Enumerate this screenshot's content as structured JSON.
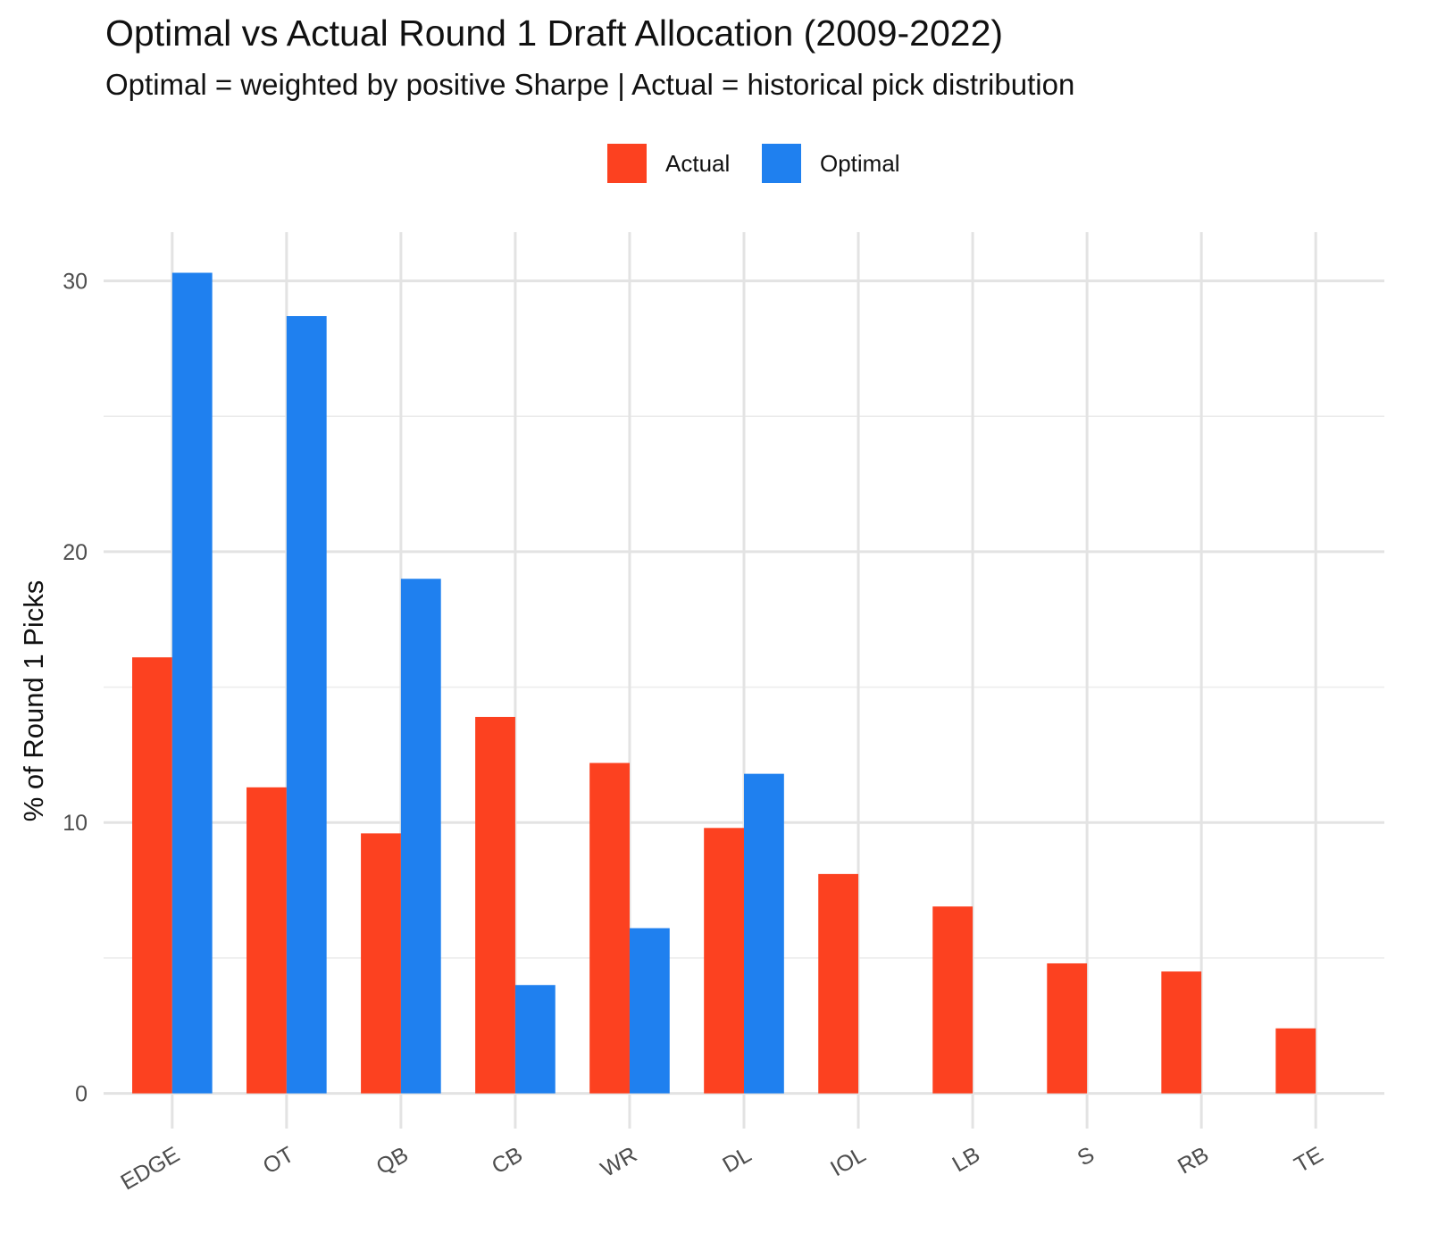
{
  "chart_data": {
    "type": "bar",
    "title": "Optimal vs Actual Round 1 Draft Allocation (2009-2022)",
    "subtitle": "Optimal = weighted by positive Sharpe | Actual = historical pick distribution",
    "xlabel": "",
    "ylabel": "% of Round 1 Picks",
    "categories": [
      "EDGE",
      "OT",
      "QB",
      "CB",
      "WR",
      "DL",
      "IOL",
      "LB",
      "S",
      "RB",
      "TE"
    ],
    "series": [
      {
        "name": "Actual",
        "color": "#FC4120",
        "values": [
          16.1,
          11.3,
          9.6,
          13.9,
          12.2,
          9.8,
          8.1,
          6.9,
          4.8,
          4.5,
          2.4
        ]
      },
      {
        "name": "Optimal",
        "color": "#1F80EF",
        "values": [
          30.3,
          28.7,
          19.0,
          4.0,
          6.1,
          11.8,
          0,
          0,
          0,
          0,
          0
        ]
      }
    ],
    "ylim": [
      -1.3,
      31.8
    ],
    "yticks": [
      0,
      10,
      20,
      30
    ],
    "grid": true,
    "legend_position": "top"
  }
}
